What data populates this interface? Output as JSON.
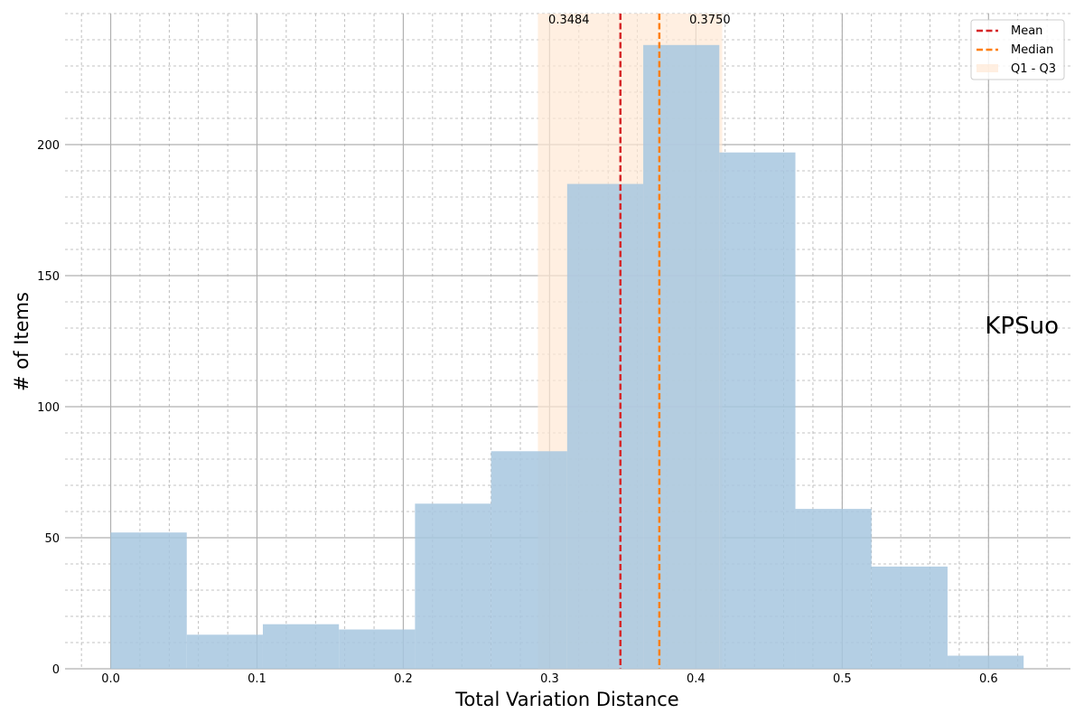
{
  "chart_data": {
    "type": "bar",
    "title": "",
    "xlabel": "Total Variation Distance",
    "ylabel": "# of Items",
    "xlim": [
      -0.0312,
      0.656
    ],
    "ylim": [
      0,
      250
    ],
    "x_ticks": [
      0.0,
      0.1,
      0.2,
      0.3,
      0.4,
      0.5,
      0.6
    ],
    "x_tick_labels": [
      "0.0",
      "0.1",
      "0.2",
      "0.3",
      "0.4",
      "0.5",
      "0.6"
    ],
    "y_ticks": [
      0,
      50,
      100,
      150,
      200
    ],
    "y_tick_labels": [
      "0",
      "50",
      "100",
      "150",
      "200"
    ],
    "grid": true,
    "bin_edges": [
      0.0,
      0.052,
      0.104,
      0.156,
      0.208,
      0.26,
      0.312,
      0.364,
      0.416,
      0.468,
      0.52,
      0.572,
      0.624
    ],
    "counts": [
      52,
      13,
      17,
      15,
      63,
      83,
      185,
      238,
      197,
      61,
      39,
      5
    ],
    "bar_color": "#a7c7df",
    "mean": 0.3484,
    "median": 0.375,
    "mean_label": "0.3484",
    "median_label": "0.3750",
    "q1": 0.292,
    "q3": 0.418,
    "mean_color": "#d62728",
    "median_color": "#ff7f0e",
    "iqr_color": "#ffe8d4",
    "annotation": "KPSuo",
    "legend": {
      "position": "top-right",
      "entries": [
        "Mean",
        "Median",
        "Q1 - Q3"
      ]
    }
  }
}
